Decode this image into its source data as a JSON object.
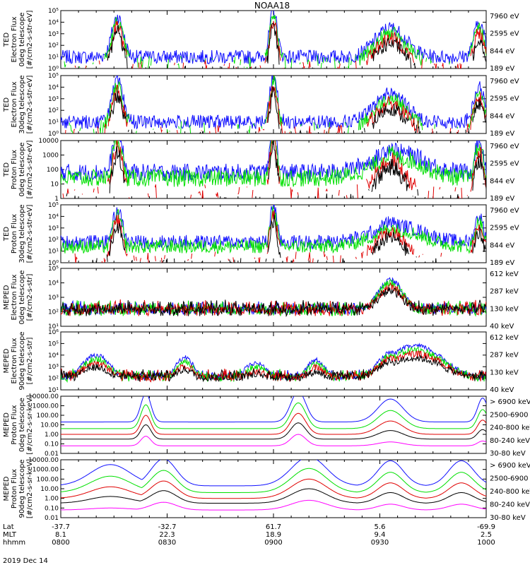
{
  "title": "NOAA18",
  "date_label": "2019 Dec 14",
  "colors": {
    "blue": "#1010ff",
    "red": "#e00000",
    "green": "#00e000",
    "black": "#000000",
    "magenta": "#ff00ff"
  },
  "chart_data": [
    {
      "type": "line",
      "ylabel": [
        "TED",
        "Electron Flux",
        "0deg telescope",
        "[#/cm2-s-str-eV]"
      ],
      "yscale": "log",
      "ylim_exp": [
        0,
        5
      ],
      "ticks": [
        "10⁰",
        "10¹",
        "10²",
        "10³",
        "10⁴",
        "10⁵"
      ],
      "legend": [
        {
          "text": "7960 eV",
          "color": "black"
        },
        {
          "text": "2595 eV",
          "color": "red"
        },
        {
          "text": "844 eV",
          "color": "green"
        },
        {
          "text": "189 eV",
          "color": "blue"
        }
      ]
    },
    {
      "type": "line",
      "ylabel": [
        "TED",
        "Electron Flux",
        "30deg telescope",
        "[#/cm2-s-str-eV]"
      ],
      "yscale": "log",
      "ylim_exp": [
        0,
        5
      ],
      "ticks": [
        "10⁰",
        "10¹",
        "10²",
        "10³",
        "10⁴",
        "10⁵"
      ],
      "legend": [
        {
          "text": "7960 eV",
          "color": "black"
        },
        {
          "text": "2595 eV",
          "color": "red"
        },
        {
          "text": "844 eV",
          "color": "green"
        },
        {
          "text": "189 eV",
          "color": "blue"
        }
      ]
    },
    {
      "type": "line",
      "ylabel": [
        "TED",
        "Proton Flux",
        "0deg telescope",
        "[#/cm2-s-str-eV]"
      ],
      "yscale": "log",
      "ylim_exp": [
        0,
        4
      ],
      "ticks": [
        "1",
        "10",
        "100",
        "1000",
        "10000"
      ],
      "legend": [
        {
          "text": "7960 eV",
          "color": "black"
        },
        {
          "text": "2595 eV",
          "color": "red"
        },
        {
          "text": "844 eV",
          "color": "green"
        },
        {
          "text": "189 eV",
          "color": "blue"
        }
      ]
    },
    {
      "type": "line",
      "ylabel": [
        "TED",
        "Proton Flux",
        "30deg telescope",
        "[#/cm2-s-str-eV]"
      ],
      "yscale": "log",
      "ylim_exp": [
        0,
        5
      ],
      "ticks": [
        "10⁰",
        "10¹",
        "10²",
        "10³",
        "10⁴",
        "10⁵"
      ],
      "legend": [
        {
          "text": "7960 eV",
          "color": "black"
        },
        {
          "text": "2595 eV",
          "color": "red"
        },
        {
          "text": "844 eV",
          "color": "green"
        },
        {
          "text": "189 eV",
          "color": "blue"
        }
      ]
    },
    {
      "type": "line",
      "ylabel": [
        "MEPED",
        "Electron Flux",
        "0deg telescope",
        "[#/cm2-s-str]"
      ],
      "yscale": "log",
      "ylim_exp": [
        1,
        5
      ],
      "ticks": [
        "10¹",
        "10²",
        "10³",
        "10⁴",
        "10⁵"
      ],
      "legend": [
        {
          "text": "612 keV",
          "color": "black"
        },
        {
          "text": "287 keV",
          "color": "red"
        },
        {
          "text": "130 keV",
          "color": "green"
        },
        {
          "text": "40 keV",
          "color": "blue"
        }
      ]
    },
    {
      "type": "line",
      "ylabel": [
        "MEPED",
        "Electron Flux",
        "90deg telescope",
        "[#/cm2-s-str]"
      ],
      "yscale": "log",
      "ylim_exp": [
        1,
        6
      ],
      "ticks": [
        "10¹",
        "10²",
        "10³",
        "10⁴",
        "10⁵",
        "10⁶"
      ],
      "legend": [
        {
          "text": "612 keV",
          "color": "black"
        },
        {
          "text": "287 keV",
          "color": "red"
        },
        {
          "text": "130 keV",
          "color": "green"
        },
        {
          "text": "40 keV",
          "color": "blue"
        }
      ]
    },
    {
      "type": "line",
      "ylabel": [
        "MEPED",
        "Proton Flux",
        "0deg telescope",
        "[#/cm2-s-sr-keV]"
      ],
      "yscale": "log",
      "ylim_exp": [
        -2,
        4
      ],
      "ticks": [
        "0.01",
        "0.10",
        "1.00",
        "10.00",
        "100.00",
        "1000.00",
        "10000.00"
      ],
      "legend": [
        {
          "text": "> 6900 keV",
          "color": "magenta"
        },
        {
          "text": "2500-6900",
          "color": "black"
        },
        {
          "text": "240-800 keV",
          "color": "red"
        },
        {
          "text": "80-240 keV",
          "color": "green"
        },
        {
          "text": "30-80 keV",
          "color": "blue"
        }
      ]
    },
    {
      "type": "line",
      "ylabel": [
        "MEPED",
        "Proton Flux",
        "90deg telescope",
        "[#/cm2-s-sr-keV]"
      ],
      "yscale": "log",
      "ylim_exp": [
        -2,
        4
      ],
      "ticks": [
        "0.01",
        "0.10",
        "1.00",
        "10.00",
        "100.00",
        "1000.00",
        "10000.00"
      ],
      "legend": [
        {
          "text": "> 6900 keV",
          "color": "magenta"
        },
        {
          "text": "2500-6900",
          "color": "black"
        },
        {
          "text": "240-800 keV",
          "color": "red"
        },
        {
          "text": "80-240 keV",
          "color": "green"
        },
        {
          "text": "30-80 keV",
          "color": "blue"
        }
      ]
    }
  ],
  "xaxis": {
    "row_labels": [
      "Lat",
      "MLT",
      "hhmm"
    ],
    "ticks": [
      {
        "t": 0,
        "lat": "-37.7",
        "mlt": "8.1",
        "time": "0800"
      },
      {
        "t": 30,
        "lat": "-32.7",
        "mlt": "22.3",
        "time": "0830"
      },
      {
        "t": 60,
        "lat": "61.7",
        "mlt": "18.9",
        "time": "0900"
      },
      {
        "t": 90,
        "lat": "5.6",
        "mlt": "9.4",
        "time": "0930"
      },
      {
        "t": 120,
        "lat": "-69.9",
        "mlt": "2.5",
        "time": "1000"
      }
    ]
  }
}
